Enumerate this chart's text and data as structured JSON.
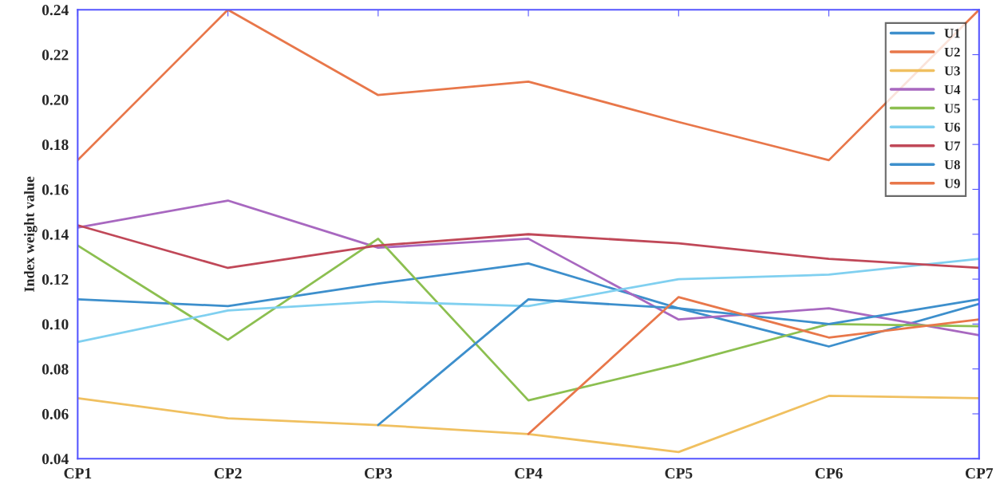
{
  "chart_data": {
    "type": "line",
    "ylabel": "Index weight value",
    "categories": [
      "CP1",
      "CP2",
      "CP3",
      "CP4",
      "CP5",
      "CP6",
      "CP7"
    ],
    "series": [
      {
        "name": "U1",
        "color": "#3d8fcc",
        "values": [
          0.111,
          0.108,
          0.118,
          0.127,
          0.107,
          0.09,
          0.109
        ]
      },
      {
        "name": "U2",
        "color": "#e8774a",
        "values": [
          0.173,
          0.24,
          0.202,
          0.208,
          0.19,
          0.173,
          0.24
        ]
      },
      {
        "name": "U3",
        "color": "#f0c060",
        "values": [
          0.067,
          0.058,
          0.055,
          0.051,
          0.043,
          0.068,
          0.067
        ]
      },
      {
        "name": "U4",
        "color": "#a868c0",
        "values": [
          0.143,
          0.155,
          0.134,
          0.138,
          0.102,
          0.107,
          0.095
        ]
      },
      {
        "name": "U5",
        "color": "#8cbf50",
        "values": [
          0.135,
          0.093,
          0.138,
          0.066,
          0.082,
          0.1,
          0.099
        ]
      },
      {
        "name": "U6",
        "color": "#80d0f0",
        "values": [
          0.092,
          0.106,
          0.11,
          0.108,
          0.12,
          0.122,
          0.129
        ]
      },
      {
        "name": "U7",
        "color": "#c04858",
        "values": [
          0.144,
          0.125,
          0.135,
          0.14,
          0.136,
          0.129,
          0.125
        ]
      },
      {
        "name": "U8",
        "color": "#3d8fcc",
        "values": [
          null,
          null,
          0.055,
          0.111,
          0.107,
          0.1,
          0.111
        ]
      },
      {
        "name": "U9",
        "color": "#e8774a",
        "values": [
          null,
          null,
          null,
          0.051,
          0.112,
          0.094,
          0.102
        ]
      }
    ],
    "ylim": [
      0.04,
      0.24
    ],
    "yticks": [
      0.04,
      0.06,
      0.08,
      {
        "value": 0.1,
        "label": "0.10"
      },
      0.12,
      0.14,
      0.16,
      0.18,
      {
        "value": 0.2,
        "label": "0.20"
      },
      0.22,
      0.24
    ],
    "grid": false,
    "legend": "top right",
    "marker": "none",
    "line_style": "solid"
  }
}
